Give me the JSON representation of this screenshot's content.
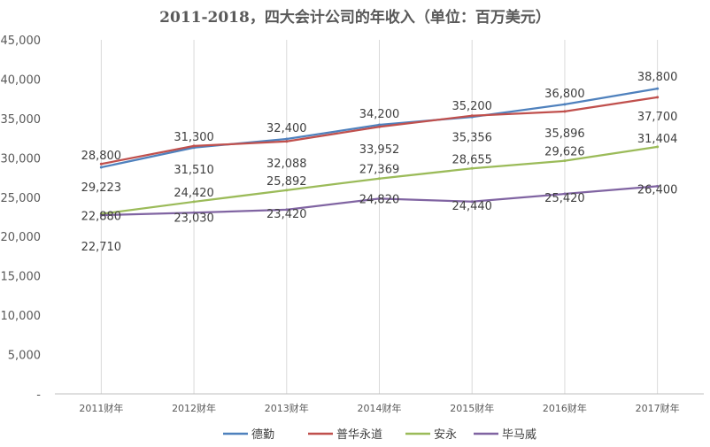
{
  "chart_data": {
    "type": "line",
    "title": "2011-2018，四大会计公司的年收入（单位：百万美元）",
    "categories": [
      "2011财年",
      "2012财年",
      "2013财年",
      "2014财年",
      "2015财年",
      "2016财年",
      "2017财年"
    ],
    "ylim": [
      0,
      45000
    ],
    "y_ticks": [
      "-",
      "5,000",
      "10,000",
      "15,000",
      "20,000",
      "25,000",
      "30,000",
      "35,000",
      "40,000",
      "45,000"
    ],
    "grid": "vertical category lines",
    "legend_position": "bottom",
    "series": [
      {
        "name": "德勤",
        "color": "#4f81bd",
        "values": [
          28800,
          31300,
          32400,
          34200,
          35200,
          36800,
          38800
        ],
        "labels": [
          "28,800",
          "31,300",
          "32,400",
          "34,200",
          "35,200",
          "36,800",
          "38,800"
        ]
      },
      {
        "name": "普华永道",
        "color": "#c0504d",
        "values": [
          29223,
          31510,
          32088,
          33952,
          35356,
          35896,
          37700
        ],
        "labels": [
          "29,223",
          "31,510",
          "32,088",
          "33,952",
          "35,356",
          "35,896",
          "37,700"
        ]
      },
      {
        "name": "安永",
        "color": "#9bbb59",
        "values": [
          22880,
          24420,
          25892,
          27369,
          28655,
          29626,
          31404
        ],
        "labels": [
          "22,880",
          "24,420",
          "25,892",
          "27,369",
          "28,655",
          "29,626",
          "31,404"
        ]
      },
      {
        "name": "毕马威",
        "color": "#8064a2",
        "values": [
          22710,
          23030,
          23420,
          24820,
          24440,
          25420,
          26400
        ],
        "labels": [
          "22,710",
          "23,030",
          "23,420",
          "24,820",
          "24,440",
          "25,420",
          "26,400"
        ]
      }
    ]
  }
}
